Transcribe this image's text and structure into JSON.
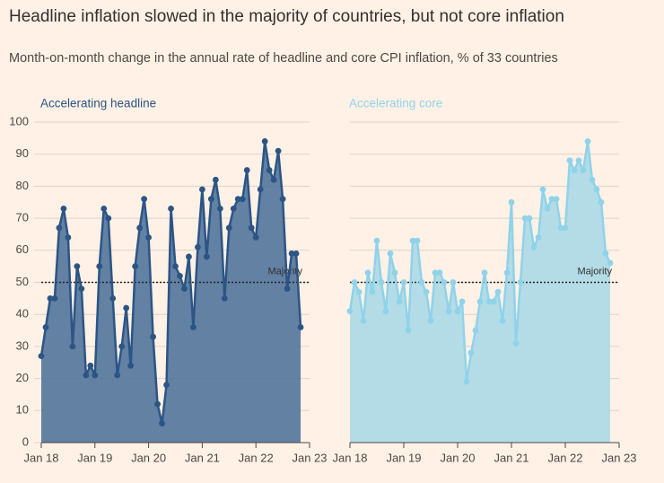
{
  "title": "Headline inflation slowed in the majority of countries, but not core inflation",
  "subtitle": "Month-on-month change in the annual rate of headline and core CPI inflation, % of 33 countries",
  "chart_data": [
    {
      "type": "area",
      "title": "Accelerating headline",
      "color": "#2c5585",
      "fill": "#5a7a9f",
      "categories": [
        "Jan 18",
        null,
        null,
        null,
        null,
        null,
        null,
        null,
        null,
        null,
        null,
        null,
        "Jan 19",
        null,
        null,
        null,
        null,
        null,
        null,
        null,
        null,
        null,
        null,
        null,
        "Jan 20",
        null,
        null,
        null,
        null,
        null,
        null,
        null,
        null,
        null,
        null,
        null,
        "Jan 21",
        null,
        null,
        null,
        null,
        null,
        null,
        null,
        null,
        null,
        null,
        null,
        "Jan 22",
        null,
        null,
        null,
        null,
        null,
        null,
        null,
        null,
        null,
        null,
        null,
        "Jan 23"
      ],
      "values": [
        27,
        36,
        45,
        45,
        67,
        73,
        64,
        30,
        55,
        48,
        21,
        24,
        21,
        55,
        73,
        70,
        45,
        21,
        30,
        42,
        24,
        55,
        67,
        76,
        64,
        33,
        12,
        6,
        18,
        73,
        55,
        52,
        48,
        58,
        36,
        61,
        79,
        58,
        76,
        82,
        73,
        45,
        67,
        73,
        76,
        76,
        85,
        67,
        64,
        79,
        94,
        85,
        82,
        91,
        76,
        48,
        59,
        59,
        36,
        null,
        null
      ],
      "ylim": [
        0,
        100
      ],
      "yticks": [
        0,
        10,
        20,
        30,
        40,
        50,
        60,
        70,
        80,
        90,
        100
      ],
      "show_ytick_labels": true,
      "grid": true,
      "annotation": {
        "text": "Majority",
        "value": 50
      }
    },
    {
      "type": "area",
      "title": "Accelerating core",
      "color": "#8fd3ea",
      "fill": "#b0dae6",
      "categories": [
        "Jan 18",
        null,
        null,
        null,
        null,
        null,
        null,
        null,
        null,
        null,
        null,
        null,
        "Jan 19",
        null,
        null,
        null,
        null,
        null,
        null,
        null,
        null,
        null,
        null,
        null,
        "Jan 20",
        null,
        null,
        null,
        null,
        null,
        null,
        null,
        null,
        null,
        null,
        null,
        "Jan 21",
        null,
        null,
        null,
        null,
        null,
        null,
        null,
        null,
        null,
        null,
        null,
        "Jan 22",
        null,
        null,
        null,
        null,
        null,
        null,
        null,
        null,
        null,
        null,
        null,
        "Jan 23"
      ],
      "values": [
        41,
        50,
        47,
        38,
        53,
        47,
        63,
        50,
        41,
        59,
        53,
        44,
        50,
        35,
        63,
        63,
        50,
        47,
        38,
        53,
        53,
        50,
        41,
        50,
        41,
        44,
        19,
        28,
        35,
        44,
        53,
        44,
        44,
        47,
        38,
        53,
        75,
        31,
        50,
        70,
        70,
        61,
        64,
        79,
        73,
        76,
        76,
        67,
        67,
        88,
        85,
        88,
        85,
        94,
        82,
        79,
        75,
        59,
        56,
        null,
        null
      ],
      "ylim": [
        0,
        100
      ],
      "yticks": [
        0,
        10,
        20,
        30,
        40,
        50,
        60,
        70,
        80,
        90,
        100
      ],
      "show_ytick_labels": false,
      "grid": true,
      "annotation": {
        "text": "Majority",
        "value": 50
      }
    }
  ]
}
